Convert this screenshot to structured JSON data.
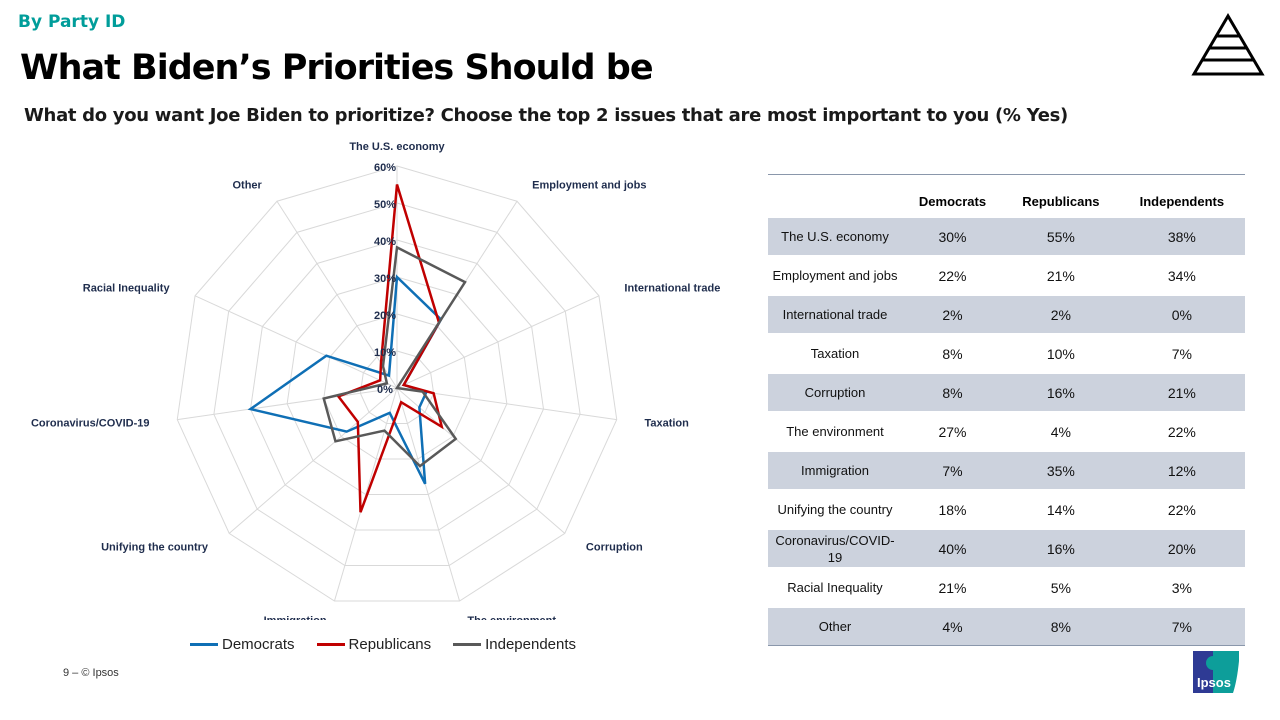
{
  "header": {
    "kicker": "By Party ID",
    "title": "What Biden’s Priorities Should be",
    "subtitle": "What do you want Joe Biden to prioritize? Choose the top 2 issues that are most important to you (% Yes)"
  },
  "chart_data": {
    "type": "radar",
    "categories": [
      "The U.S. economy",
      "Employment and jobs",
      "International trade",
      "Taxation",
      "Corruption",
      "The environment",
      "Immigration",
      "Unifying the country",
      "Coronavirus/COVID-19",
      "Racial Inequality",
      "Other"
    ],
    "series": [
      {
        "name": "Democrats",
        "color": "#0f6fb5",
        "values": [
          30,
          22,
          2,
          8,
          8,
          27,
          7,
          18,
          40,
          21,
          4
        ]
      },
      {
        "name": "Republicans",
        "color": "#c00000",
        "values": [
          55,
          21,
          2,
          10,
          16,
          4,
          35,
          14,
          16,
          5,
          8
        ]
      },
      {
        "name": "Independents",
        "color": "#595959",
        "values": [
          38,
          34,
          0,
          7,
          21,
          22,
          12,
          22,
          20,
          3,
          7
        ]
      }
    ],
    "rlim": [
      0,
      60
    ],
    "ticks": [
      "0%",
      "10%",
      "20%",
      "30%",
      "40%",
      "50%",
      "60%"
    ],
    "legend": "bottom",
    "grid": true
  },
  "table": {
    "columns": [
      "",
      "Democrats",
      "Republicans",
      "Independents"
    ],
    "rows": [
      [
        "The U.S. economy",
        "30%",
        "55%",
        "38%"
      ],
      [
        "Employment and jobs",
        "22%",
        "21%",
        "34%"
      ],
      [
        "International trade",
        "2%",
        "2%",
        "0%"
      ],
      [
        "Taxation",
        "8%",
        "10%",
        "7%"
      ],
      [
        "Corruption",
        "8%",
        "16%",
        "21%"
      ],
      [
        "The environment",
        "27%",
        "4%",
        "22%"
      ],
      [
        "Immigration",
        "7%",
        "35%",
        "12%"
      ],
      [
        "Unifying the country",
        "18%",
        "14%",
        "22%"
      ],
      [
        "Coronavirus/COVID-19",
        "40%",
        "16%",
        "20%"
      ],
      [
        "Racial Inequality",
        "21%",
        "5%",
        "3%"
      ],
      [
        "Other",
        "4%",
        "8%",
        "7%"
      ]
    ]
  },
  "footer": {
    "text": "9 –   © Ipsos"
  },
  "logos": {
    "ipsos": "Ipsos"
  }
}
